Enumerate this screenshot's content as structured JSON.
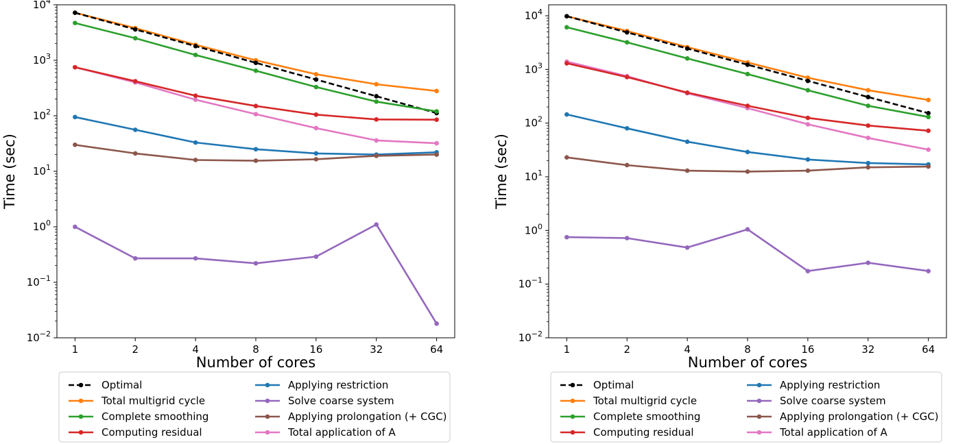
{
  "legend": {
    "entries": [
      {
        "label": "Optimal",
        "color": "#000000",
        "dashed": true
      },
      {
        "label": "Total multigrid cycle",
        "color": "#ff7f0e"
      },
      {
        "label": "Complete smoothing",
        "color": "#2ca02c"
      },
      {
        "label": "Computing residual",
        "color": "#d62728"
      },
      {
        "label": "Applying restriction",
        "color": "#1f77b4"
      },
      {
        "label": "Solve coarse system",
        "color": "#9467bd"
      },
      {
        "label": "Applying prolongation (+ CGC)",
        "color": "#8c564b"
      },
      {
        "label": "Total application of A",
        "color": "#e377c2"
      }
    ]
  },
  "chart_data": [
    {
      "type": "line",
      "xlabel": "Number of cores",
      "ylabel": "Time (sec)",
      "x_scale": "log2",
      "y_scale": "log10",
      "x": [
        1,
        2,
        4,
        8,
        16,
        32,
        64
      ],
      "x_tick_labels": [
        "1",
        "2",
        "4",
        "8",
        "16",
        "32",
        "64"
      ],
      "ylim": [
        0.01,
        10000
      ],
      "y_tick_labels": [
        {
          "base": "10",
          "exp": "4"
        },
        {
          "base": "10",
          "exp": "3"
        },
        {
          "base": "10",
          "exp": "2"
        },
        {
          "base": "10",
          "exp": "1"
        },
        {
          "base": "10",
          "exp": "0"
        },
        {
          "base": "10",
          "exp": "−1"
        },
        {
          "base": "10",
          "exp": "−2"
        }
      ],
      "legend_position": "below",
      "grid": false,
      "series": [
        {
          "name": "Total multigrid cycle",
          "values": [
            7200,
            3800,
            1900,
            1000,
            560,
            370,
            280
          ]
        },
        {
          "name": "Optimal",
          "values": [
            7200,
            3600,
            1800,
            900,
            450,
            225,
            112
          ]
        },
        {
          "name": "Complete smoothing",
          "values": [
            4700,
            2500,
            1250,
            650,
            330,
            180,
            120
          ]
        },
        {
          "name": "Total application of A",
          "values": [
            750,
            400,
            195,
            107,
            60,
            36,
            32
          ]
        },
        {
          "name": "Computing residual",
          "values": [
            750,
            420,
            230,
            150,
            105,
            86,
            85
          ]
        },
        {
          "name": "Applying restriction",
          "values": [
            95,
            56,
            33,
            25,
            21,
            20,
            22
          ]
        },
        {
          "name": "Applying prolongation (+ CGC)",
          "values": [
            30,
            21,
            16,
            15.5,
            16.5,
            19,
            20
          ]
        },
        {
          "name": "Solve coarse system",
          "values": [
            1.0,
            0.27,
            0.27,
            0.22,
            0.29,
            1.1,
            0.018
          ]
        }
      ]
    },
    {
      "type": "line",
      "xlabel": "Number of cores",
      "ylabel": "Time (sec)",
      "x_scale": "log2",
      "y_scale": "log10",
      "x": [
        1,
        2,
        4,
        8,
        16,
        32,
        64
      ],
      "x_tick_labels": [
        "1",
        "2",
        "4",
        "8",
        "16",
        "32",
        "64"
      ],
      "ylim": [
        0.01,
        16000
      ],
      "y_tick_labels": [
        {
          "base": "10",
          "exp": "4"
        },
        {
          "base": "10",
          "exp": "3"
        },
        {
          "base": "10",
          "exp": "2"
        },
        {
          "base": "10",
          "exp": "1"
        },
        {
          "base": "10",
          "exp": "0"
        },
        {
          "base": "10",
          "exp": "−1"
        },
        {
          "base": "10",
          "exp": "−2"
        }
      ],
      "legend_position": "below",
      "grid": false,
      "series": [
        {
          "name": "Total multigrid cycle",
          "values": [
            9800,
            5200,
            2600,
            1350,
            700,
            410,
            270
          ]
        },
        {
          "name": "Optimal",
          "values": [
            9800,
            4900,
            2450,
            1225,
            612,
            306,
            153
          ]
        },
        {
          "name": "Complete smoothing",
          "values": [
            6100,
            3200,
            1600,
            820,
            410,
            210,
            130
          ]
        },
        {
          "name": "Total application of A",
          "values": [
            1400,
            750,
            360,
            190,
            95,
            53,
            32
          ]
        },
        {
          "name": "Computing residual",
          "values": [
            1300,
            720,
            370,
            210,
            125,
            90,
            72
          ]
        },
        {
          "name": "Applying restriction",
          "values": [
            145,
            80,
            45,
            29,
            21,
            18,
            17
          ]
        },
        {
          "name": "Applying prolongation (+ CGC)",
          "values": [
            23,
            16.5,
            13,
            12.5,
            13,
            15,
            15.5
          ]
        },
        {
          "name": "Solve coarse system",
          "values": [
            0.75,
            0.72,
            0.48,
            1.05,
            0.175,
            0.25,
            0.175
          ]
        }
      ]
    }
  ]
}
